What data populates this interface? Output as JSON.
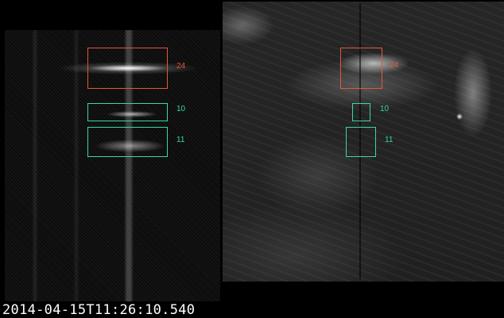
{
  "timestamp": "2014-04-15T11:26:10.540",
  "colors": {
    "roi_primary": "#e2583a",
    "roi_secondary": "#3ad9a3",
    "timestamp_text": "#ffffff"
  },
  "regions": [
    {
      "id": "24",
      "label": "24",
      "color": "#e2583a"
    },
    {
      "id": "10",
      "label": "10",
      "color": "#3ad9a3"
    },
    {
      "id": "11",
      "label": "11",
      "color": "#3ad9a3"
    }
  ],
  "panels": {
    "left": "spectrum",
    "right": "context-image"
  }
}
